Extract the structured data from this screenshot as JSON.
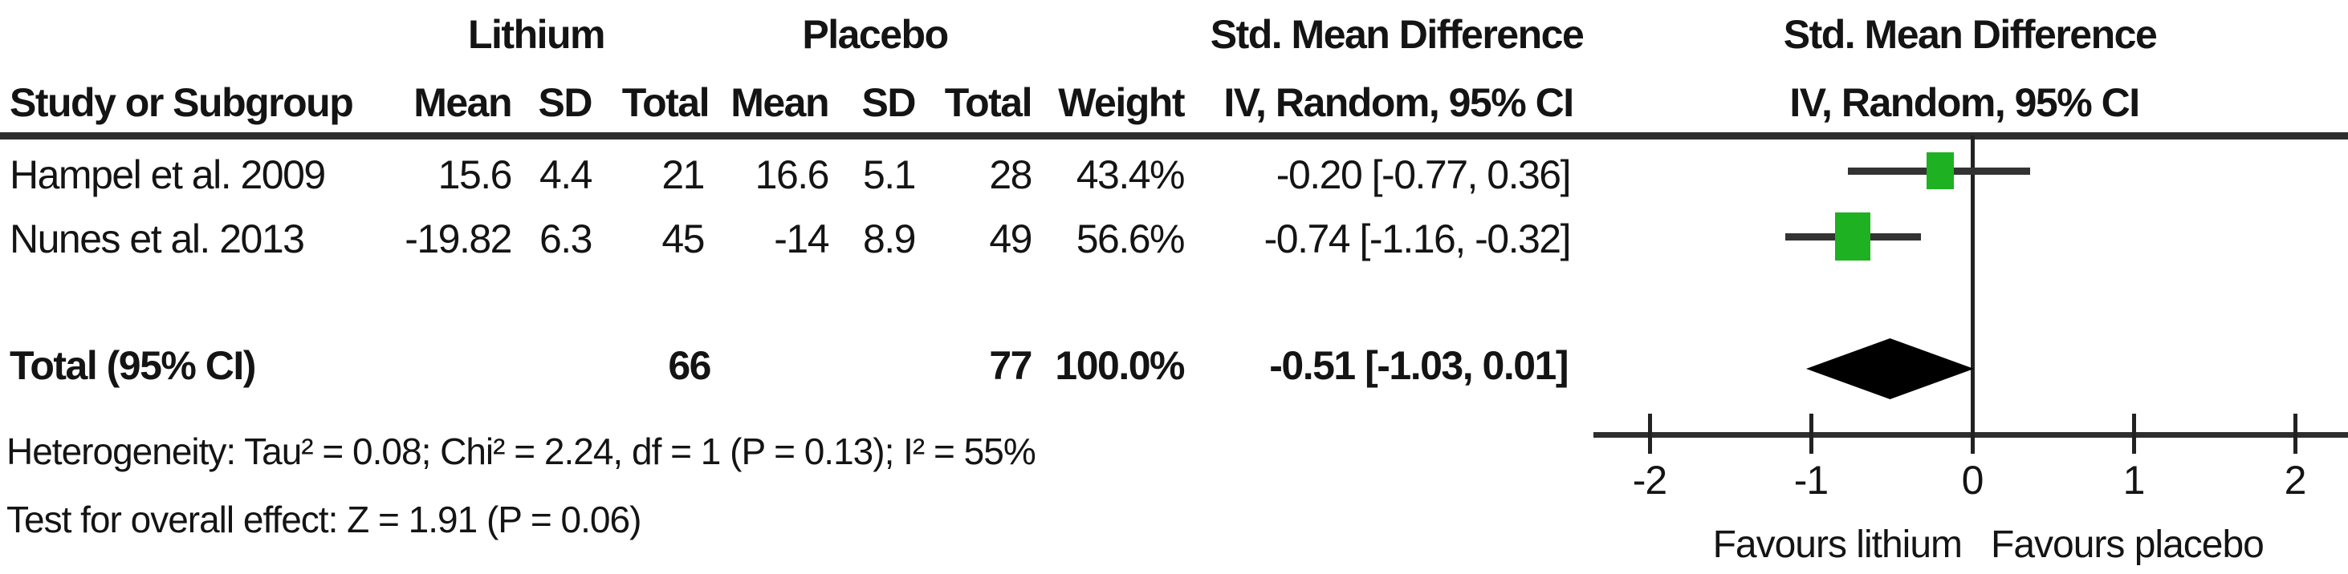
{
  "figure": {
    "group_headers": {
      "lithium": "Lithium",
      "placebo": "Placebo",
      "smd_left": "Std. Mean Difference",
      "smd_right": "Std. Mean Difference"
    },
    "column_headers": {
      "study": "Study or Subgroup",
      "mean1": "Mean",
      "sd1": "SD",
      "total1": "Total",
      "mean2": "Mean",
      "sd2": "SD",
      "total2": "Total",
      "weight": "Weight",
      "ci_left": "IV, Random, 95% CI",
      "ci_right": "IV, Random, 95% CI"
    },
    "rows": [
      {
        "study": "Hampel et al. 2009",
        "mean1": "15.6",
        "sd1": "4.4",
        "total1": "21",
        "mean2": "16.6",
        "sd2": "5.1",
        "total2": "28",
        "weight": "43.4%",
        "ci": "-0.20 [-0.77, 0.36]"
      },
      {
        "study": "Nunes et al. 2013",
        "mean1": "-19.82",
        "sd1": "6.3",
        "total1": "45",
        "mean2": "-14",
        "sd2": "8.9",
        "total2": "49",
        "weight": "56.6%",
        "ci": "-0.74 [-1.16, -0.32]"
      }
    ],
    "total_row": {
      "label": "Total (95% CI)",
      "total1": "66",
      "total2": "77",
      "weight": "100.0%",
      "ci": "-0.51 [-1.03, 0.01]"
    },
    "footnotes": {
      "heterogeneity": "Heterogeneity: Tau² = 0.08; Chi² = 2.24, df = 1 (P = 0.13); I² = 55%",
      "overall_effect": "Test for overall effect: Z = 1.91 (P = 0.06)"
    }
  },
  "chart_data": {
    "type": "forest",
    "effect_measure": "Std. Mean Difference, IV, Random, 95% CI",
    "studies": [
      {
        "name": "Hampel et al. 2009",
        "estimate": -0.2,
        "ci_low": -0.77,
        "ci_high": 0.36,
        "weight_pct": 43.4
      },
      {
        "name": "Nunes et al. 2013",
        "estimate": -0.74,
        "ci_low": -1.16,
        "ci_high": -0.32,
        "weight_pct": 56.6
      }
    ],
    "summary": {
      "label": "Total (95% CI)",
      "estimate": -0.51,
      "ci_low": -1.03,
      "ci_high": 0.01
    },
    "axis": {
      "ticks": [
        -2,
        -1,
        0,
        1,
        2
      ],
      "tick_labels": [
        "-2",
        "-1",
        "0",
        "1",
        "2"
      ],
      "range": [
        -2.35,
        2.33
      ],
      "zero_line": 0,
      "grid": false
    },
    "axis_labels": {
      "left": "Favours lithium",
      "right": "Favours placebo"
    },
    "colors": {
      "study_marker": "#1eb122",
      "ci_line": "#333333",
      "diamond": "#000000",
      "text": "#141414"
    }
  }
}
